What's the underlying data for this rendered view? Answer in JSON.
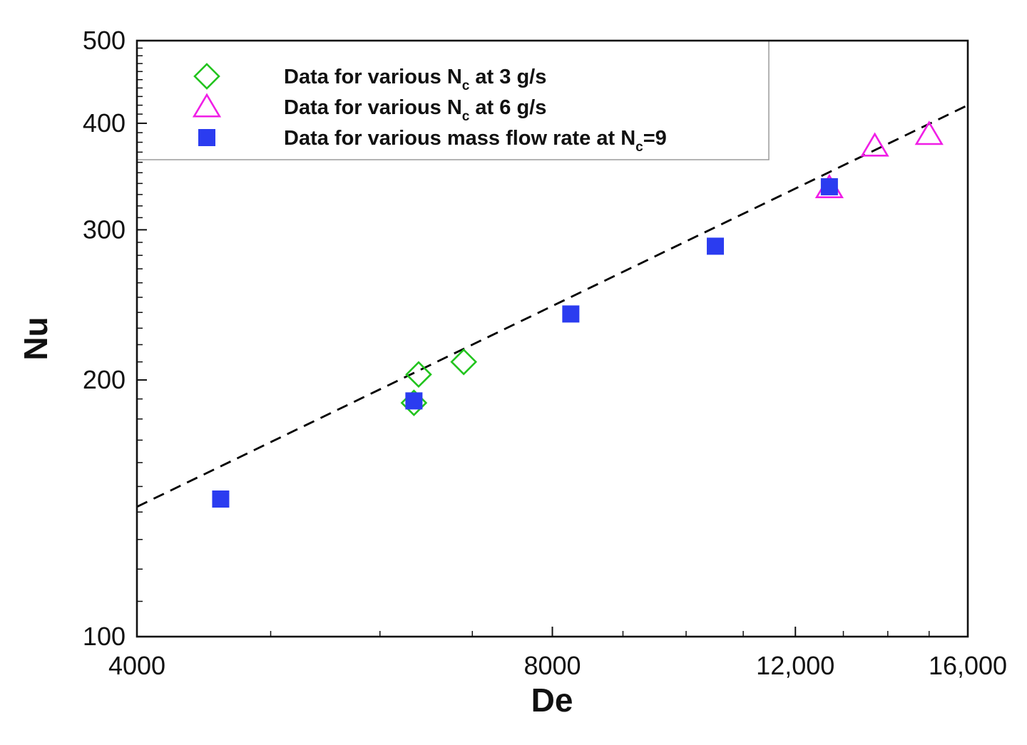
{
  "chart_data": {
    "type": "scatter",
    "title": "",
    "xlabel": "De",
    "ylabel": "Nu",
    "xscale": "log",
    "yscale": "log",
    "xlim": [
      4000,
      16000
    ],
    "ylim": [
      100,
      500
    ],
    "x_ticks": [
      {
        "value": 4000,
        "label": "4000"
      },
      {
        "value": 8000,
        "label": "8000"
      },
      {
        "value": 12000,
        "label": "12,000"
      },
      {
        "value": 16000,
        "label": "16,000"
      }
    ],
    "x_minor_ticks": [
      5000,
      6000,
      7000,
      9000,
      10000,
      11000,
      13000,
      14000,
      15000
    ],
    "y_ticks": [
      {
        "value": 100,
        "label": "100"
      },
      {
        "value": 200,
        "label": "200"
      },
      {
        "value": 300,
        "label": "300"
      },
      {
        "value": 400,
        "label": "400"
      },
      {
        "value": 500,
        "label": "500"
      }
    ],
    "y_minor_ticks": [
      110,
      120,
      130,
      140,
      150,
      160,
      170,
      180,
      190,
      210,
      220,
      230,
      240,
      250,
      260,
      270,
      280,
      290,
      310,
      320,
      330,
      340,
      350,
      360,
      370,
      380,
      390,
      410,
      420,
      430,
      440,
      450,
      460,
      470,
      480,
      490
    ],
    "grid": false,
    "legend_position": "top-left",
    "series": [
      {
        "name": "Data for various N_c at 3 g/s",
        "legend_parts": [
          "Data for various N",
          "c",
          " at 3 g/s"
        ],
        "marker": "diamond-open",
        "color": "#22c41e",
        "points": [
          [
            6350,
            188
          ],
          [
            6400,
            203
          ],
          [
            6900,
            210
          ]
        ]
      },
      {
        "name": "Data for various N_c at 6 g/s",
        "legend_parts": [
          "Data for various N",
          "c",
          " at 6 g/s"
        ],
        "marker": "triangle-open",
        "color": "#f01ee6",
        "points": [
          [
            12700,
            336
          ],
          [
            13700,
            376
          ],
          [
            15000,
            388
          ]
        ]
      },
      {
        "name": "Data for various mass flow rate at N_c=9",
        "legend_parts": [
          "Data for various mass flow rate at N",
          "c",
          "=9"
        ],
        "marker": "square-filled",
        "color": "#2b3cf0",
        "points": [
          [
            4600,
            145
          ],
          [
            6350,
            189
          ],
          [
            8250,
            239
          ],
          [
            10500,
            287
          ],
          [
            12700,
            337
          ]
        ]
      }
    ],
    "fit_line": {
      "style": "dashed",
      "color": "#000000",
      "points": [
        [
          4000,
          142
        ],
        [
          16000,
          420
        ]
      ]
    }
  }
}
